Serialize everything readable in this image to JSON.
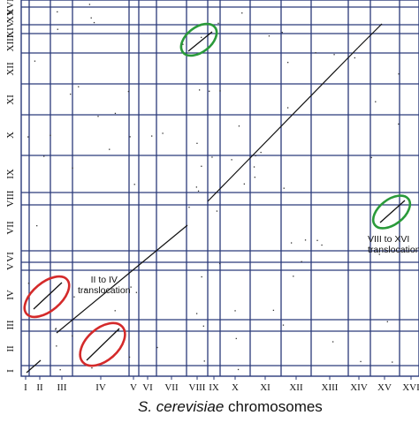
{
  "x_axis": {
    "labels": [
      "I",
      "II",
      "III",
      "IV",
      "V",
      "VI",
      "VII",
      "VIII",
      "IX",
      "X",
      "XI",
      "XII",
      "XIII",
      "XIV",
      "XV",
      "XVI"
    ],
    "title_species": "S. cerevisiae",
    "title_suffix": " chromosomes"
  },
  "y_axis": {
    "labels": [
      "I",
      "II",
      "III",
      "IV",
      "V",
      "VI",
      "VII",
      "VIII",
      "IX",
      "X",
      "XI",
      "XII",
      "XIII",
      "XIV",
      "XV",
      "XVI"
    ]
  },
  "annotations": [
    {
      "id": "ii-iv",
      "line1": "II to IV",
      "line2": "translocation",
      "ring_color": "#d42a2a"
    },
    {
      "id": "viii-xvi",
      "line1": "VIII to XVI",
      "line2": "translocation",
      "ring_color": "#2a9a3a"
    }
  ],
  "colors": {
    "grid": "#2b3a7a",
    "diagonal": "#111111",
    "red_ring": "#d42a2a",
    "green_ring": "#2a9a3a"
  }
}
